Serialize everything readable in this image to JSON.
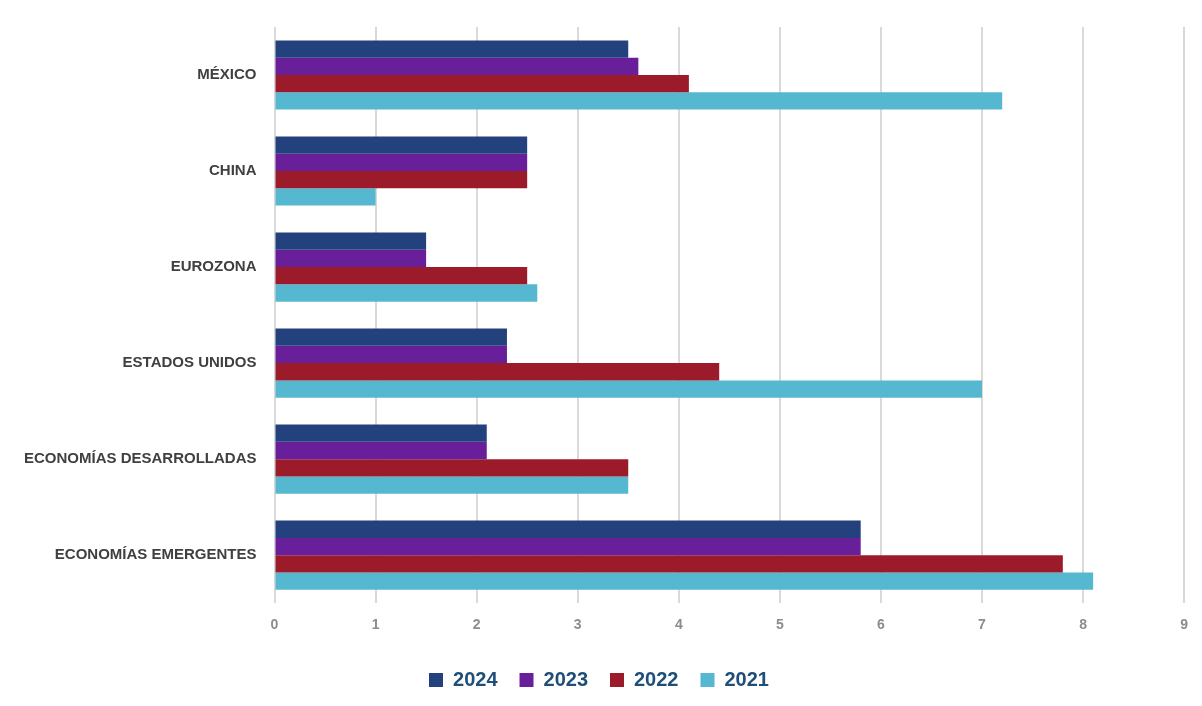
{
  "chart_data": {
    "type": "bar",
    "orientation": "horizontal",
    "categories": [
      "MÉXICO",
      "CHINA",
      "EUROZONA",
      "ESTADOS UNIDOS",
      "ECONOMÍAS DESARROLLADAS",
      "ECONOMÍAS EMERGENTES"
    ],
    "series": [
      {
        "name": "2024",
        "color": "#23417d",
        "values": [
          3.5,
          2.5,
          1.5,
          2.3,
          2.1,
          5.8
        ]
      },
      {
        "name": "2023",
        "color": "#6a1f9a",
        "values": [
          3.6,
          2.5,
          1.5,
          2.3,
          2.1,
          5.8
        ]
      },
      {
        "name": "2022",
        "color": "#9b1b2a",
        "values": [
          4.1,
          2.5,
          2.5,
          4.4,
          3.5,
          7.8
        ]
      },
      {
        "name": "2021",
        "color": "#56b8d0",
        "values": [
          7.2,
          1.0,
          2.6,
          7.0,
          3.5,
          8.1
        ]
      }
    ],
    "xlim": [
      0,
      9
    ],
    "xticks": [
      0,
      1,
      2,
      3,
      4,
      5,
      6,
      7,
      8,
      9
    ],
    "grid": "x",
    "legend": "bottom"
  }
}
